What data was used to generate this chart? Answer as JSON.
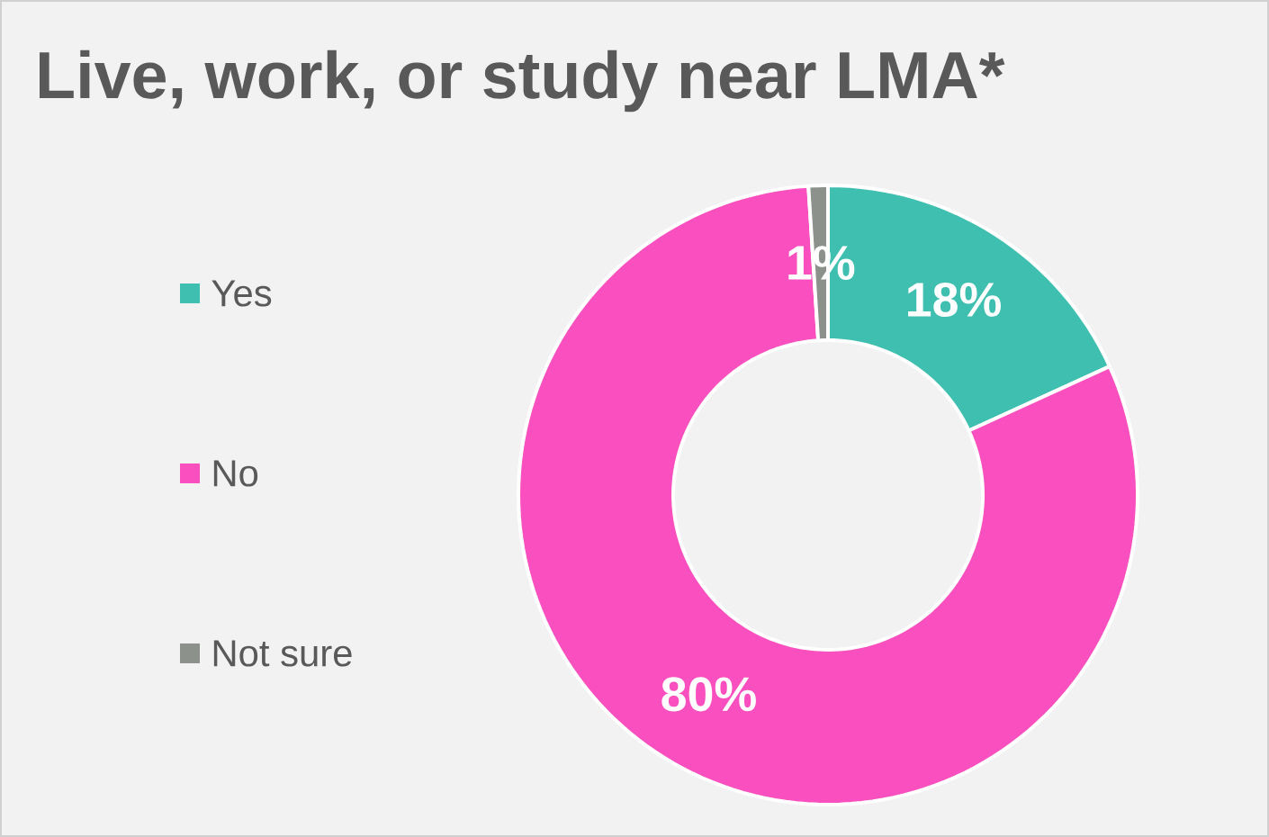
{
  "chart_data": {
    "type": "donut",
    "title": "Live, work, or study near LMA*",
    "categories": [
      "Yes",
      "No",
      "Not sure"
    ],
    "values": [
      18,
      80,
      1
    ],
    "colors": [
      "#3fbfb0",
      "#f94fbf",
      "#8c918c"
    ],
    "value_labels": [
      "18%",
      "80%",
      "1%"
    ],
    "legend": "left"
  }
}
